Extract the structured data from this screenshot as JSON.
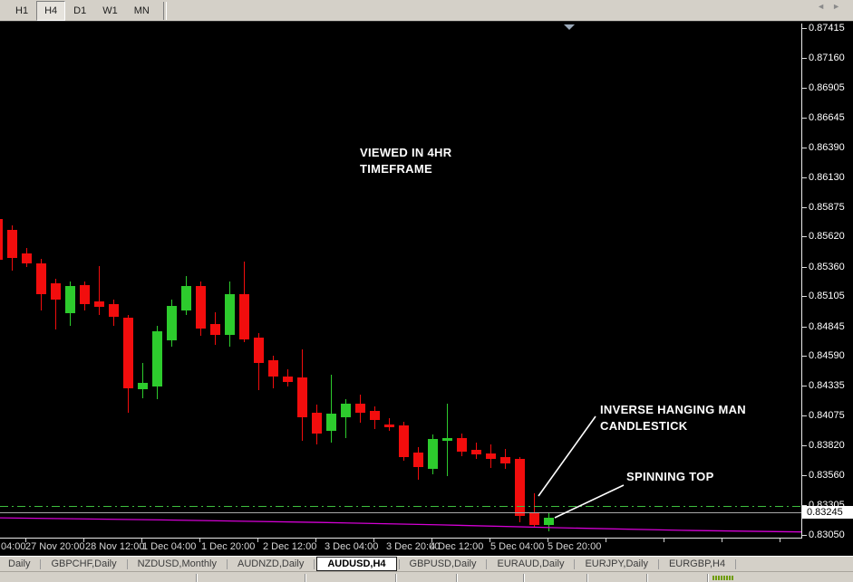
{
  "toolbar": {
    "buttons": [
      {
        "label": "H1",
        "active": false
      },
      {
        "label": "H4",
        "active": true
      },
      {
        "label": "D1",
        "active": false
      },
      {
        "label": "W1",
        "active": false
      },
      {
        "label": "MN",
        "active": false
      }
    ]
  },
  "annotations": {
    "timeframe_note_line1": "VIEWED IN 4HR",
    "timeframe_note_line2": "TIMEFRAME",
    "ihm_line1": "INVERSE HANGING MAN",
    "ihm_line2": "CANDLESTICK",
    "spinning_top": "SPINNING TOP"
  },
  "bottom_tabs": {
    "items": [
      {
        "label": "Daily",
        "active": false
      },
      {
        "label": "GBPCHF,Daily",
        "active": false
      },
      {
        "label": "NZDUSD,Monthly",
        "active": false
      },
      {
        "label": "AUDNZD,Daily",
        "active": false
      },
      {
        "label": "AUDUSD,H4",
        "active": true
      },
      {
        "label": "GBPUSD,Daily",
        "active": false
      },
      {
        "label": "EURAUD,Daily",
        "active": false
      },
      {
        "label": "EURJPY,Daily",
        "active": false
      },
      {
        "label": "EURGBP,H4",
        "active": false
      }
    ],
    "scroll_left_icon": "◄",
    "scroll_right_icon": "►"
  },
  "chart_data": {
    "type": "candlestick",
    "symbol": "AUDUSD",
    "timeframe": "H4",
    "colors": {
      "bull": "#2dcb2d",
      "bear": "#f20d0d",
      "background": "#000000",
      "ma": "#d400d4",
      "support": "#3dbd3d",
      "bid": "#a9a9a9"
    },
    "y_axis": {
      "p_top": 0.87455,
      "p_bottom": 0.83025,
      "tick_labels": [
        "0.87415",
        "0.87160",
        "0.86905",
        "0.86645",
        "0.86390",
        "0.86130",
        "0.85875",
        "0.85620",
        "0.85360",
        "0.85105",
        "0.84845",
        "0.84590",
        "0.84335",
        "0.84075",
        "0.83820",
        "0.83560",
        "0.83305",
        "0.83050"
      ],
      "current_price": "0.83245"
    },
    "x_axis": {
      "tick_labels": [
        "04:00",
        "27 Nov 20:00",
        "28 Nov 12:00",
        "1 Dec 04:00",
        "1 Dec 20:00",
        "2 Dec 12:00",
        "3 Dec 04:00",
        "3 Dec 20:00",
        "4 Dec 12:00",
        "5 Dec 04:00",
        "5 Dec 20:00"
      ]
    },
    "candles": [
      [
        0.8577,
        0.8581,
        0.85337,
        0.85416
      ],
      [
        0.85676,
        0.85715,
        0.85322,
        0.85432
      ],
      [
        0.85471,
        0.85518,
        0.85353,
        0.85392
      ],
      [
        0.85392,
        0.85424,
        0.84983,
        0.85125
      ],
      [
        0.85219,
        0.85259,
        0.84818,
        0.85078
      ],
      [
        0.8496,
        0.85235,
        0.84849,
        0.85196
      ],
      [
        0.85204,
        0.85235,
        0.84983,
        0.85038
      ],
      [
        0.85062,
        0.85361,
        0.84944,
        0.85015
      ],
      [
        0.85038,
        0.85078,
        0.84849,
        0.84928
      ],
      [
        0.8492,
        0.84944,
        0.84101,
        0.84314
      ],
      [
        0.84306,
        0.84534,
        0.84227,
        0.84361
      ],
      [
        0.8433,
        0.84849,
        0.84219,
        0.84802
      ],
      [
        0.84723,
        0.85078,
        0.84668,
        0.85023
      ],
      [
        0.84983,
        0.85282,
        0.84944,
        0.85196
      ],
      [
        0.85196,
        0.85235,
        0.84763,
        0.84826
      ],
      [
        0.84865,
        0.84968,
        0.84684,
        0.84771
      ],
      [
        0.84771,
        0.85235,
        0.84668,
        0.85125
      ],
      [
        0.85125,
        0.854,
        0.84708,
        0.84731
      ],
      [
        0.84747,
        0.84786,
        0.84298,
        0.84527
      ],
      [
        0.8455,
        0.8459,
        0.84314,
        0.84416
      ],
      [
        0.84416,
        0.84472,
        0.8433,
        0.84369
      ],
      [
        0.84409,
        0.84645,
        0.83857,
        0.84062
      ],
      [
        0.84101,
        0.84172,
        0.83826,
        0.8392
      ],
      [
        0.83944,
        0.84432,
        0.83841,
        0.84093
      ],
      [
        0.84062,
        0.84219,
        0.8388,
        0.8418
      ],
      [
        0.8418,
        0.84259,
        0.84014,
        0.84101
      ],
      [
        0.84117,
        0.84156,
        0.83959,
        0.84038
      ],
      [
        0.83999,
        0.84054,
        0.83944,
        0.83975
      ],
      [
        0.83991,
        0.84022,
        0.83684,
        0.83723
      ],
      [
        0.83755,
        0.83802,
        0.83527,
        0.83637
      ],
      [
        0.83621,
        0.83912,
        0.83574,
        0.83873
      ],
      [
        0.83857,
        0.8418,
        0.83558,
        0.8388
      ],
      [
        0.8388,
        0.8392,
        0.83723,
        0.83763
      ],
      [
        0.83778,
        0.83841,
        0.837,
        0.83739
      ],
      [
        0.83747,
        0.83826,
        0.83629,
        0.837
      ],
      [
        0.83716,
        0.83786,
        0.83614,
        0.83668
      ],
      [
        0.837,
        0.83723,
        0.83156,
        0.83212
      ],
      [
        0.83235,
        0.83409,
        0.83117,
        0.83133
      ],
      [
        0.83133,
        0.83235,
        0.83077,
        0.83196
      ]
    ],
    "overlays": {
      "bid_line": {
        "price": 0.83245
      },
      "support_line": {
        "price": 0.833,
        "style": "dash-dot"
      },
      "ma_line": {
        "points": [
          [
            0.0,
            0.83196
          ],
          [
            0.2,
            0.83178
          ],
          [
            0.4,
            0.83156
          ],
          [
            0.55,
            0.83135
          ],
          [
            0.7,
            0.8311
          ],
          [
            0.85,
            0.83088
          ],
          [
            1.0,
            0.83074
          ]
        ]
      }
    }
  }
}
